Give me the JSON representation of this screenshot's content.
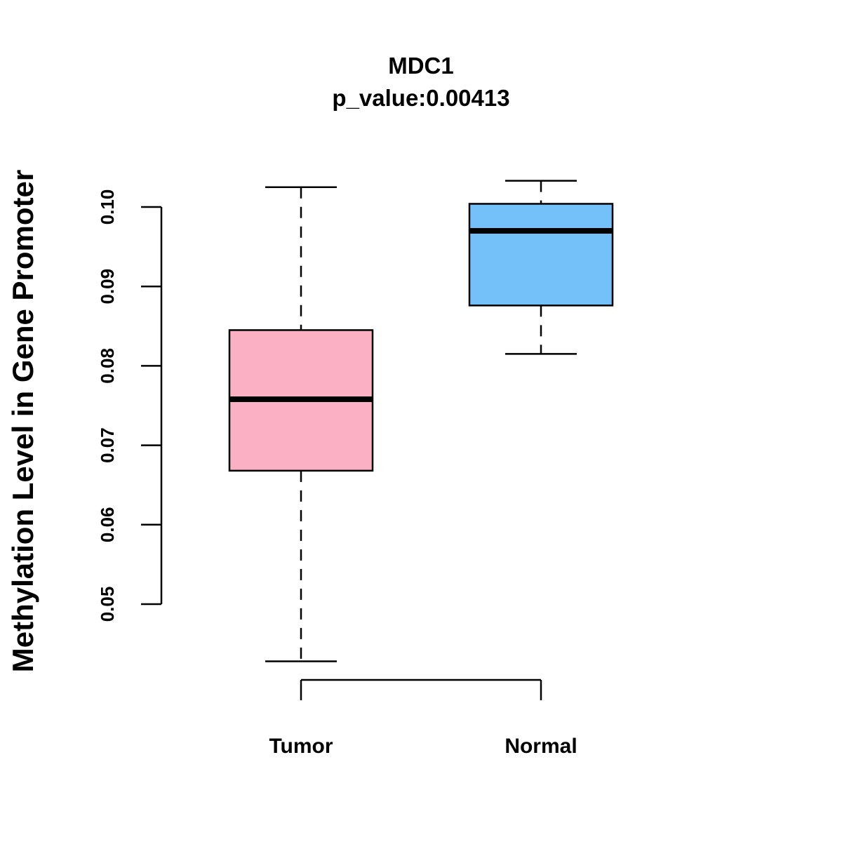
{
  "chart_data": {
    "type": "boxplot",
    "title": "MDC1",
    "subtitle": "p_value:0.00413",
    "xlabel": "",
    "ylabel": "Methylation Level in Gene Promoter",
    "ylim": [
      0.05,
      0.1
    ],
    "yticks": [
      0.05,
      0.06,
      0.07,
      0.08,
      0.09,
      0.1
    ],
    "ytick_labels": [
      "0.05",
      "0.06",
      "0.07",
      "0.08",
      "0.09",
      "0.10"
    ],
    "categories": [
      "Tumor",
      "Normal"
    ],
    "series": [
      {
        "name": "Tumor",
        "color": "#FBB1C3",
        "whisker_low": 0.0428,
        "q1": 0.0668,
        "median": 0.0758,
        "q3": 0.0845,
        "whisker_high": 0.1025
      },
      {
        "name": "Normal",
        "color": "#74C1F9",
        "whisker_low": 0.0815,
        "q1": 0.0876,
        "median": 0.097,
        "q3": 0.1004,
        "whisker_high": 0.1033
      }
    ],
    "grid": false,
    "legend": "none"
  }
}
